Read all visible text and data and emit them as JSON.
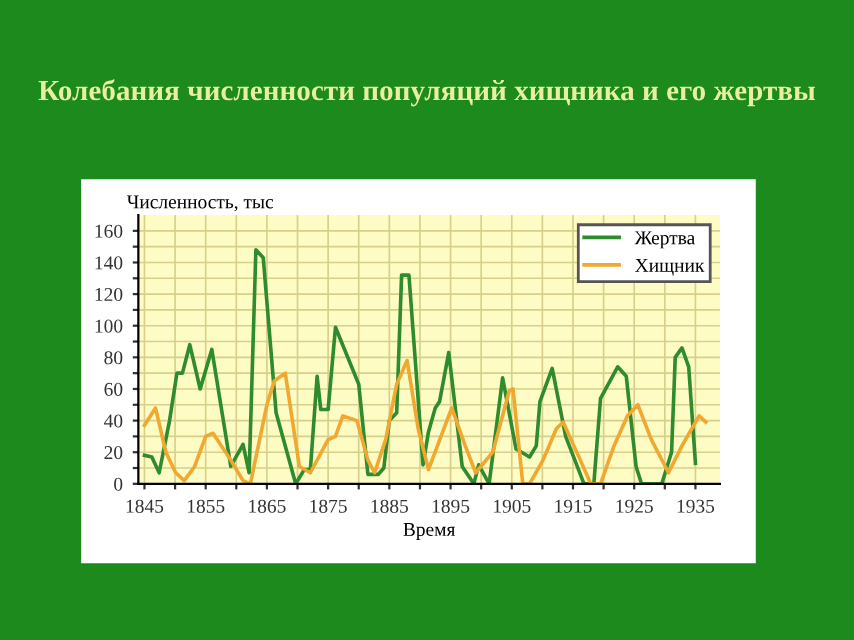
{
  "chart_data": {
    "type": "line",
    "title": "Колебания численности популяций хищника и его жертвы",
    "xlabel": "Время",
    "ylabel": "Численность, тыс",
    "xlim": [
      1844,
      1939
    ],
    "ylim": [
      0,
      170
    ],
    "xticks": [
      1845,
      {
        "value": 1850,
        "label": null
      },
      1855,
      {
        "value": 1860,
        "label": null
      },
      1865,
      {
        "value": 1870,
        "label": null
      },
      1875,
      {
        "value": 1880,
        "label": null
      },
      1885,
      {
        "value": 1890,
        "label": null
      },
      1895,
      {
        "value": 1900,
        "label": null
      },
      1905,
      {
        "value": 1910,
        "label": null
      },
      1915,
      {
        "value": 1920,
        "label": null
      },
      1925,
      {
        "value": 1930,
        "label": null
      },
      1935
    ],
    "yticks": [
      0,
      {
        "value": 10,
        "label": null
      },
      20,
      {
        "value": 30,
        "label": null
      },
      40,
      {
        "value": 50,
        "label": null
      },
      60,
      {
        "value": 70,
        "label": null
      },
      80,
      {
        "value": 90,
        "label": null
      },
      100,
      {
        "value": 110,
        "label": null
      },
      120,
      {
        "value": 130,
        "label": null
      },
      140,
      {
        "value": 150,
        "label": null
      },
      160
    ],
    "grid": true,
    "legend": "top right",
    "series": [
      {
        "name": "Жертва",
        "color": "#2e8b2e",
        "x": [
          1845,
          1846.2,
          1847.4,
          1849.1,
          1850.3,
          1851.2,
          1852.4,
          1854.1,
          1856,
          1859.1,
          1861.1,
          1862.1,
          1863.2,
          1864.4,
          1866.5,
          1869.7,
          1871.1,
          1872.1,
          1873.2,
          1873.8,
          1875,
          1876.2,
          1880,
          1881.5,
          1883.2,
          1884.1,
          1885,
          1886.2,
          1887,
          1888.2,
          1890.5,
          1891.4,
          1892.5,
          1893.2,
          1894.7,
          1896.9,
          1898.8,
          1899.6,
          1901.3,
          1903.5,
          1905.7,
          1907.9,
          1909,
          1909.6,
          1911.6,
          1913.8,
          1916.8,
          1918.4,
          1919.5,
          1922.3,
          1923.7,
          1925.3,
          1926.2,
          1929.5,
          1931.1,
          1931.7,
          1932.8,
          1933.9,
          1935
        ],
        "values": [
          18,
          17,
          7,
          40,
          70,
          70,
          88,
          60,
          85,
          11,
          25,
          7,
          148,
          143,
          45,
          0,
          9,
          9,
          68,
          47,
          47,
          99,
          63,
          6,
          6,
          10,
          40,
          45,
          132,
          132,
          12,
          33,
          48,
          52,
          83,
          11,
          0,
          12,
          0,
          67,
          22,
          17,
          24,
          52,
          73,
          30,
          0,
          0,
          54,
          74,
          68,
          11,
          0,
          0,
          20,
          80,
          86,
          74,
          13
        ]
      },
      {
        "name": "Хищник",
        "color": "#f0a830",
        "x": [
          1845,
          1846.8,
          1848.5,
          1850.1,
          1851.5,
          1853.2,
          1855,
          1856.2,
          1859.1,
          1861.1,
          1862.3,
          1865,
          1866.2,
          1868,
          1870.3,
          1872.1,
          1875,
          1876.2,
          1877.4,
          1879.7,
          1881.5,
          1882.6,
          1884.4,
          1886.2,
          1887.9,
          1889.7,
          1891.4,
          1894.7,
          1895.2,
          1897.4,
          1899.1,
          1901.9,
          1904.6,
          1905.2,
          1906.8,
          1907.9,
          1910.1,
          1912.3,
          1913.4,
          1916.2,
          1917.9,
          1919.5,
          1921.7,
          1923.9,
          1925.6,
          1927.8,
          1930.6,
          1932.8,
          1935.6,
          1936.7
        ],
        "values": [
          37,
          48,
          20,
          7,
          2,
          11,
          30,
          32,
          15,
          2,
          0,
          50,
          65,
          70,
          11,
          7,
          28,
          30,
          43,
          40,
          15,
          7,
          28,
          63,
          78,
          35,
          9,
          43,
          48,
          24,
          7,
          20,
          59,
          60,
          0,
          0,
          15,
          35,
          39,
          15,
          0,
          0,
          24,
          43,
          50,
          28,
          7,
          24,
          43,
          39
        ]
      }
    ]
  }
}
